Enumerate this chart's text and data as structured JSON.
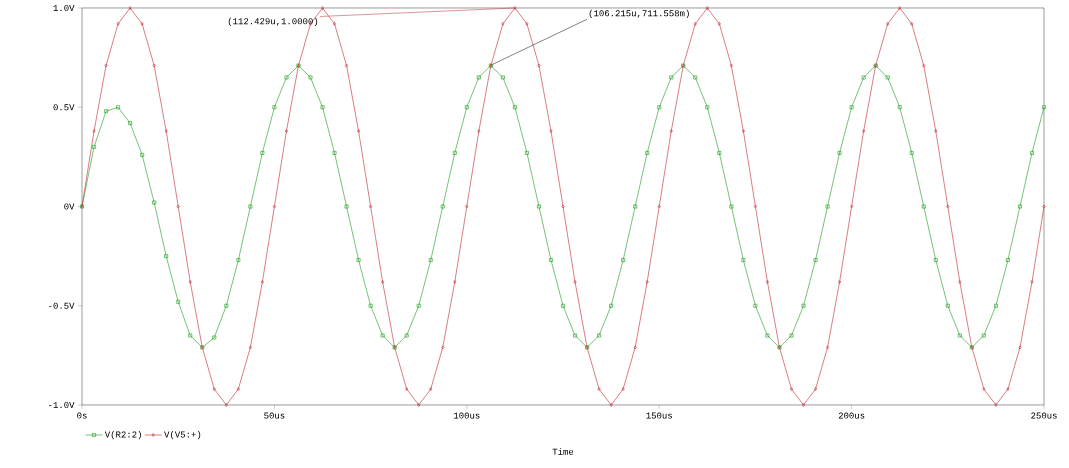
{
  "chart_data": {
    "type": "line",
    "xlabel": "Time",
    "x": [
      0,
      3.125,
      6.25,
      9.375,
      12.5,
      15.625,
      18.75,
      21.875,
      25,
      28.125,
      31.25,
      34.375,
      37.5,
      40.625,
      43.75,
      46.875,
      50,
      53.125,
      56.25,
      59.375,
      62.5,
      65.625,
      68.75,
      71.875,
      75,
      78.125,
      81.25,
      84.375,
      87.5,
      90.625,
      93.75,
      96.875,
      100,
      103.125,
      106.25,
      109.375,
      112.5,
      115.625,
      118.75,
      121.875,
      125,
      128.125,
      131.25,
      134.375,
      137.5,
      140.625,
      143.75,
      146.875,
      150,
      153.125,
      156.25,
      159.375,
      162.5,
      165.625,
      168.75,
      171.875,
      175,
      178.125,
      181.25,
      184.375,
      187.5,
      190.625,
      193.75,
      196.875,
      200,
      203.125,
      206.25,
      209.375,
      212.5,
      215.625,
      218.75,
      221.875,
      225,
      228.125,
      231.25,
      234.375,
      237.5,
      240.625,
      243.75,
      246.875,
      250
    ],
    "series": [
      {
        "name": "V(R2:2)",
        "color": "#1a9a1a",
        "marker": "square",
        "values": [
          0,
          0.3,
          0.48,
          0.5,
          0.42,
          0.26,
          0.02,
          -0.25,
          -0.48,
          -0.65,
          -0.71,
          -0.66,
          -0.5,
          -0.27,
          0,
          0.27,
          0.5,
          0.65,
          0.71,
          0.65,
          0.5,
          0.27,
          0,
          -0.27,
          -0.5,
          -0.65,
          -0.71,
          -0.65,
          -0.5,
          -0.27,
          0,
          0.27,
          0.5,
          0.65,
          0.71,
          0.65,
          0.5,
          0.27,
          0,
          -0.27,
          -0.5,
          -0.65,
          -0.71,
          -0.65,
          -0.5,
          -0.27,
          0,
          0.27,
          0.5,
          0.65,
          0.71,
          0.65,
          0.5,
          0.27,
          0,
          -0.27,
          -0.5,
          -0.65,
          -0.71,
          -0.65,
          -0.5,
          -0.27,
          0,
          0.27,
          0.5,
          0.65,
          0.71,
          0.65,
          0.5,
          0.27,
          0,
          -0.27,
          -0.5,
          -0.65,
          -0.71,
          -0.65,
          -0.5,
          -0.27,
          0,
          0.27,
          0.5
        ]
      },
      {
        "name": "V(V5:+)",
        "color": "#c0282d",
        "marker": "diamond",
        "values": [
          0,
          0.38,
          0.71,
          0.92,
          1,
          0.92,
          0.71,
          0.38,
          0,
          -0.38,
          -0.71,
          -0.92,
          -1,
          -0.92,
          -0.71,
          -0.38,
          0,
          0.38,
          0.71,
          0.92,
          1,
          0.92,
          0.71,
          0.38,
          0,
          -0.38,
          -0.71,
          -0.92,
          -1,
          -0.92,
          -0.71,
          -0.38,
          0,
          0.38,
          0.71,
          0.92,
          1,
          0.92,
          0.71,
          0.38,
          0,
          -0.38,
          -0.71,
          -0.92,
          -1,
          -0.92,
          -0.71,
          -0.38,
          0,
          0.38,
          0.71,
          0.92,
          1,
          0.92,
          0.71,
          0.38,
          0,
          -0.38,
          -0.71,
          -0.92,
          -1,
          -0.92,
          -0.71,
          -0.38,
          0,
          0.38,
          0.71,
          0.92,
          1,
          0.92,
          0.71,
          0.38,
          0,
          -0.38,
          -0.71,
          -0.92,
          -1,
          -0.92,
          -0.71,
          -0.38,
          0
        ]
      }
    ],
    "xlim": [
      0,
      250
    ],
    "xticks": [
      {
        "value": 0,
        "label": "0s"
      },
      {
        "value": 50,
        "label": "50us"
      },
      {
        "value": 100,
        "label": "100us"
      },
      {
        "value": 150,
        "label": "150us"
      },
      {
        "value": 200,
        "label": "200us"
      },
      {
        "value": 250,
        "label": "250us"
      }
    ],
    "ylim": [
      -1,
      1
    ],
    "yticks": [
      {
        "value": -1,
        "label": "-1.0V"
      },
      {
        "value": -0.5,
        "label": "-0.5V"
      },
      {
        "value": 0,
        "label": "0V"
      },
      {
        "value": 0.5,
        "label": "0.5V"
      },
      {
        "value": 1,
        "label": "1.0V"
      }
    ],
    "annotations": [
      {
        "text": "(112.429u,1.0000)",
        "x": 112.429,
        "y": 1.0
      },
      {
        "text": "(106.215u,711.558m)",
        "x": 106.215,
        "y": 0.711558
      }
    ],
    "legend": "bottom left",
    "grid": false,
    "line_style": "solid"
  }
}
